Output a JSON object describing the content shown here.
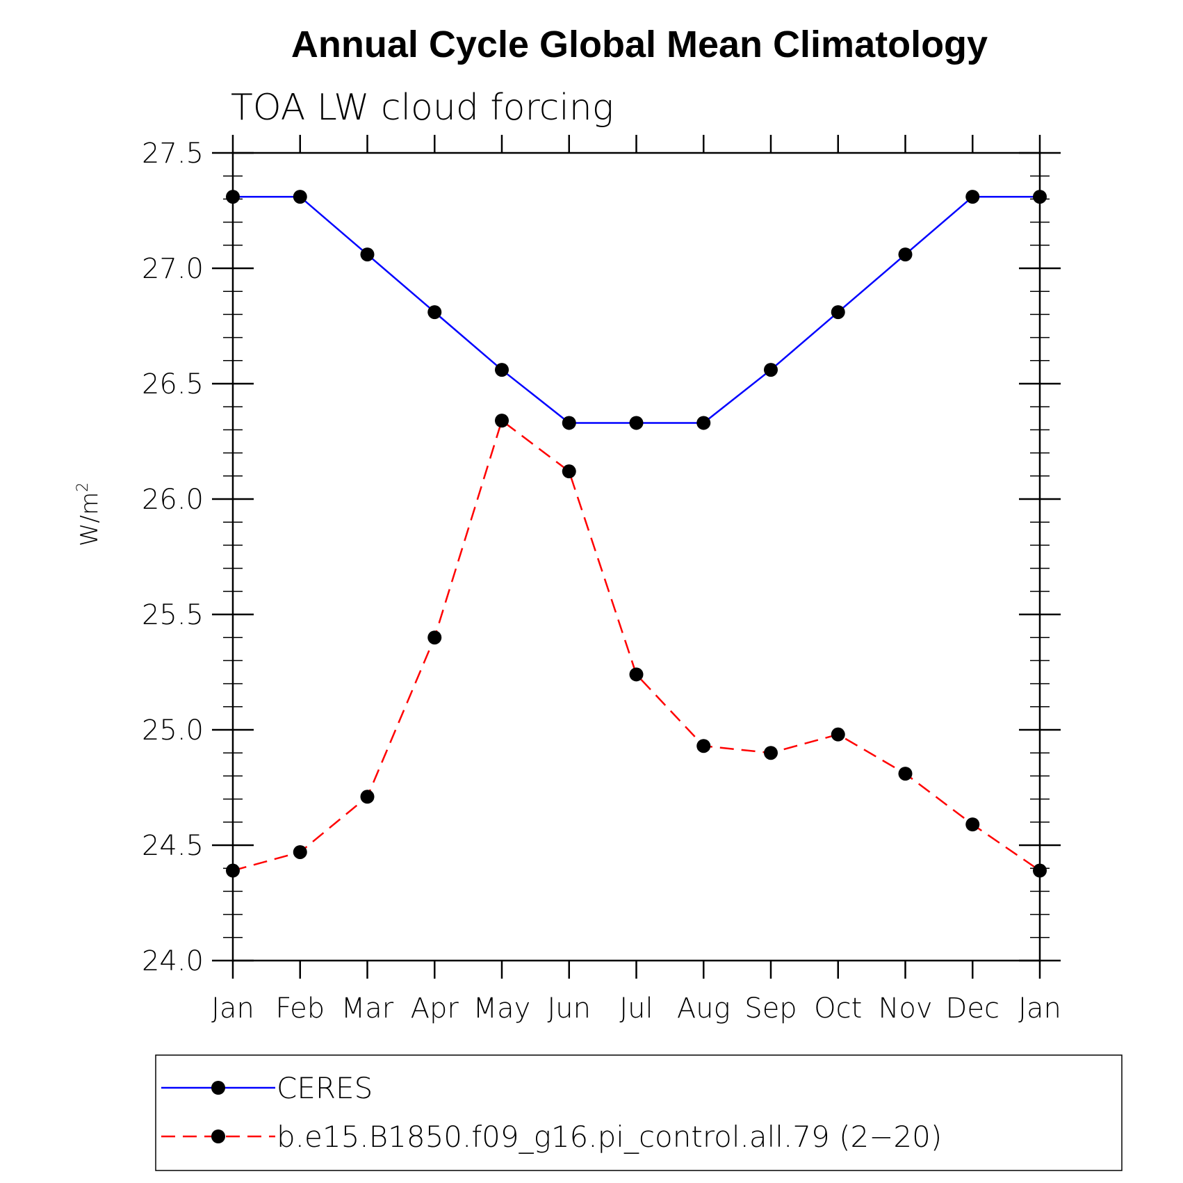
{
  "chart_data": {
    "type": "line",
    "title": "Annual Cycle Global Mean Climatology",
    "subtitle": "TOA LW cloud forcing",
    "xlabel": "",
    "ylabel": "W/m",
    "ylabel_superscript": "2",
    "categories": [
      "Jan",
      "Feb",
      "Mar",
      "Apr",
      "May",
      "Jun",
      "Jul",
      "Aug",
      "Sep",
      "Oct",
      "Nov",
      "Dec",
      "Jan"
    ],
    "ylim": [
      24.0,
      27.5
    ],
    "yticks": [
      "24.0",
      "24.5",
      "25.0",
      "25.5",
      "26.0",
      "26.5",
      "27.0",
      "27.5"
    ],
    "grid": false,
    "legend_position": "bottom",
    "series": [
      {
        "name": "CERES",
        "color": "#0000ff",
        "line_style": "solid",
        "marker": "filled-circle",
        "values": [
          27.31,
          27.31,
          27.06,
          26.81,
          26.56,
          26.33,
          26.33,
          26.33,
          26.56,
          26.81,
          27.06,
          27.31,
          27.31
        ]
      },
      {
        "name": "b.e15.B1850.f09_g16.pi_control.all.79 (2−20)",
        "color": "#ff0000",
        "line_style": "dashed",
        "marker": "filled-circle",
        "values": [
          24.39,
          24.47,
          24.71,
          25.4,
          26.34,
          26.12,
          25.24,
          24.93,
          24.9,
          24.98,
          24.81,
          24.59,
          24.39
        ]
      }
    ]
  }
}
